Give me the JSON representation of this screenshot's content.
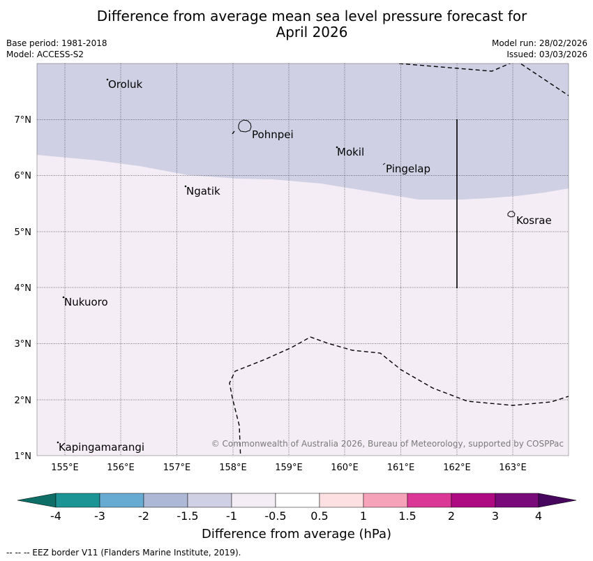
{
  "title_line1": "Difference from average mean sea level pressure forecast for",
  "title_line2": "April 2026",
  "meta": {
    "base_period": "Base period: 1981-2018",
    "model": "Model: ACCESS-S2",
    "model_run": "Model run: 28/02/2026",
    "issued": "Issued: 03/03/2026"
  },
  "map": {
    "extent": {
      "lon_min": 154.5,
      "lon_max": 164.0,
      "lat_min": 1.0,
      "lat_max": 8.0
    },
    "lat_labels": [
      "7°N",
      "6°N",
      "5°N",
      "4°N",
      "3°N",
      "2°N",
      "1°N"
    ],
    "lon_labels": [
      "155°E",
      "156°E",
      "157°E",
      "158°E",
      "159°E",
      "160°E",
      "161°E",
      "162°E",
      "163°E"
    ],
    "places": [
      {
        "name": "Oroluk",
        "lon": 155.75,
        "lat": 7.6
      },
      {
        "name": "Pohnpei",
        "lon": 158.3,
        "lat": 6.85
      },
      {
        "name": "Mokil",
        "lon": 159.85,
        "lat": 6.45
      },
      {
        "name": "Pingelap",
        "lon": 160.75,
        "lat": 6.25
      },
      {
        "name": "Ngatik",
        "lon": 157.2,
        "lat": 5.8
      },
      {
        "name": "Kosrae",
        "lon": 163.0,
        "lat": 5.3
      },
      {
        "name": "Nukuoro",
        "lon": 154.95,
        "lat": 3.85
      },
      {
        "name": "Kapingamarangi",
        "lon": 154.88,
        "lat": 1.25
      }
    ],
    "colors": {
      "shade_neg_1_5_to_neg_1": "#cfd0e4",
      "shade_neg_1_to_neg_0_5": "#f4edf5"
    },
    "copyright": "© Commonwealth of Australia 2026, Bureau of Meteorology, supported by COSPPac"
  },
  "colorbar": {
    "title": "Difference from average (hPa)",
    "labels": [
      "-4",
      "-3",
      "-2",
      "-1.5",
      "-1",
      "-0.5",
      "0.5",
      "1",
      "1.5",
      "2",
      "3",
      "4"
    ],
    "colors": [
      "#1c9496",
      "#68abd2",
      "#adb8d6",
      "#cfd0e4",
      "#f4edf5",
      "#ffffff",
      "#fde0e1",
      "#f6a2b8",
      "#da3797",
      "#ae0a82",
      "#780a7a"
    ],
    "low_extend_color": "#0c6e66",
    "high_extend_color": "#47075e"
  },
  "footer": "--  --  -- EEZ border V11 (Flanders Marine Institute, 2019)."
}
